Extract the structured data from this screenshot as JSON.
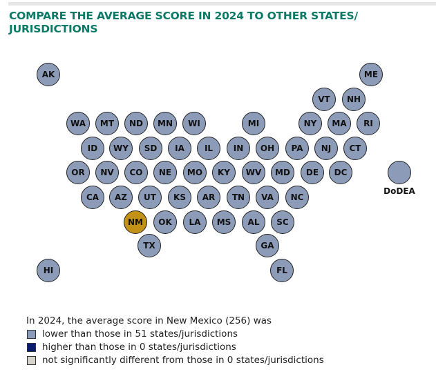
{
  "title": "COMPARE THE AVERAGE SCORE IN 2024 TO OTHER STATES/ JURISDICTIONS",
  "colors": {
    "lower": "#8c9cb8",
    "higher": "#0a1a6e",
    "not_different": "#d6d3cc",
    "focal": "#c39116",
    "title": "#0d7a67"
  },
  "states": [
    {
      "code": "AK",
      "status": "lower"
    },
    {
      "code": "ME",
      "status": "lower"
    },
    {
      "code": "VT",
      "status": "lower"
    },
    {
      "code": "NH",
      "status": "lower"
    },
    {
      "code": "WA",
      "status": "lower"
    },
    {
      "code": "MT",
      "status": "lower"
    },
    {
      "code": "ND",
      "status": "lower"
    },
    {
      "code": "MN",
      "status": "lower"
    },
    {
      "code": "WI",
      "status": "lower"
    },
    {
      "code": "MI",
      "status": "lower"
    },
    {
      "code": "NY",
      "status": "lower"
    },
    {
      "code": "MA",
      "status": "lower"
    },
    {
      "code": "RI",
      "status": "lower"
    },
    {
      "code": "ID",
      "status": "lower"
    },
    {
      "code": "WY",
      "status": "lower"
    },
    {
      "code": "SD",
      "status": "lower"
    },
    {
      "code": "IA",
      "status": "lower"
    },
    {
      "code": "IL",
      "status": "lower"
    },
    {
      "code": "IN",
      "status": "lower"
    },
    {
      "code": "OH",
      "status": "lower"
    },
    {
      "code": "PA",
      "status": "lower"
    },
    {
      "code": "NJ",
      "status": "lower"
    },
    {
      "code": "CT",
      "status": "lower"
    },
    {
      "code": "OR",
      "status": "lower"
    },
    {
      "code": "NV",
      "status": "lower"
    },
    {
      "code": "CO",
      "status": "lower"
    },
    {
      "code": "NE",
      "status": "lower"
    },
    {
      "code": "MO",
      "status": "lower"
    },
    {
      "code": "KY",
      "status": "lower"
    },
    {
      "code": "WV",
      "status": "lower"
    },
    {
      "code": "MD",
      "status": "lower"
    },
    {
      "code": "DE",
      "status": "lower"
    },
    {
      "code": "DC",
      "status": "lower"
    },
    {
      "code": "CA",
      "status": "lower"
    },
    {
      "code": "AZ",
      "status": "lower"
    },
    {
      "code": "UT",
      "status": "lower"
    },
    {
      "code": "KS",
      "status": "lower"
    },
    {
      "code": "AR",
      "status": "lower"
    },
    {
      "code": "TN",
      "status": "lower"
    },
    {
      "code": "VA",
      "status": "lower"
    },
    {
      "code": "NC",
      "status": "lower"
    },
    {
      "code": "NM",
      "status": "focal"
    },
    {
      "code": "OK",
      "status": "lower"
    },
    {
      "code": "LA",
      "status": "lower"
    },
    {
      "code": "MS",
      "status": "lower"
    },
    {
      "code": "AL",
      "status": "lower"
    },
    {
      "code": "SC",
      "status": "lower"
    },
    {
      "code": "TX",
      "status": "lower"
    },
    {
      "code": "GA",
      "status": "lower"
    },
    {
      "code": "FL",
      "status": "lower"
    },
    {
      "code": "HI",
      "status": "lower"
    }
  ],
  "dodea": {
    "label": "DoDEA",
    "status": "lower"
  },
  "legend": {
    "intro": "In 2024, the average score in New Mexico (256) was",
    "items": [
      {
        "key": "lower",
        "label": "lower than those in 51 states/jurisdictions"
      },
      {
        "key": "higher",
        "label": "higher than those in 0 states/jurisdictions"
      },
      {
        "key": "not_different",
        "label": "not significantly different from those in 0 states/jurisdictions"
      }
    ]
  }
}
